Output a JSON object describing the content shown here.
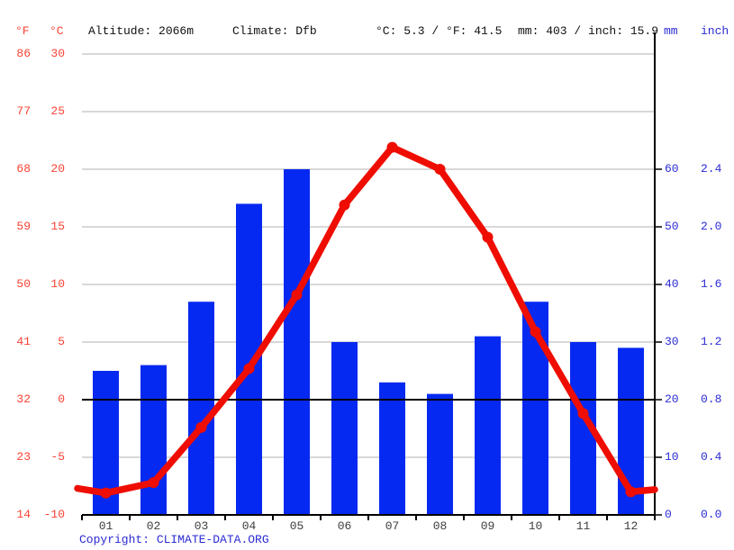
{
  "header": {
    "f_label": "°F",
    "c_label": "°C",
    "altitude": "Altitude: 2066m",
    "climate": "Climate: Dfb",
    "temp_summary": "°C: 5.3 / °F: 41.5",
    "precip_summary": "mm: 403 / inch: 15.9",
    "mm_label": "mm",
    "inch_label": "inch"
  },
  "footer": {
    "copyright": "Copyright: ",
    "site": "CLIMATE-DATA.ORG"
  },
  "colors": {
    "bar_blue": "#0529f0",
    "line_red": "#ee0d00",
    "text_red": "#f94334",
    "text_blue": "#2b2bd4",
    "grid_gray": "#cccccc",
    "axis_black": "#000000",
    "month_text": "#3d3d3d"
  },
  "chart_data": {
    "type": "bar",
    "combo": "bar+line climograph",
    "categories": [
      "01",
      "02",
      "03",
      "04",
      "05",
      "06",
      "07",
      "08",
      "09",
      "10",
      "11",
      "12"
    ],
    "series": [
      {
        "name": "precipitation",
        "type": "bar",
        "unit": "mm",
        "values": [
          25,
          26,
          37,
          54,
          60,
          30,
          23,
          21,
          31,
          37,
          30,
          29
        ]
      },
      {
        "name": "temperature",
        "type": "line",
        "unit": "°C",
        "values": [
          -8.1,
          -7.2,
          -2.4,
          2.7,
          9.1,
          16.9,
          21.9,
          20.0,
          14.1,
          5.9,
          -1.2,
          -8.0
        ]
      }
    ],
    "line_edge_values_c": {
      "left": -7.7,
      "right": -7.8
    },
    "temp_axis": {
      "side": "left",
      "f_ticks": [
        "86",
        "77",
        "68",
        "59",
        "50",
        "41",
        "32",
        "23",
        "14"
      ],
      "c_ticks": [
        "30",
        "25",
        "20",
        "15",
        "10",
        "5",
        "0",
        "-5",
        "-10"
      ],
      "c_tick_values": [
        30,
        25,
        20,
        15,
        10,
        5,
        0,
        -5,
        -10
      ],
      "range_c": [
        -10,
        30
      ]
    },
    "precip_axis": {
      "side": "right",
      "mm_ticks": [
        "60",
        "50",
        "40",
        "30",
        "20",
        "10",
        "0"
      ],
      "inch_ticks": [
        "2.4",
        "2.0",
        "1.6",
        "1.2",
        "0.8",
        "0.4",
        "0.0"
      ],
      "mm_tick_values": [
        60,
        50,
        40,
        30,
        20,
        10,
        0
      ],
      "range_mm": [
        0,
        80
      ]
    },
    "zero_line_c": 0,
    "grid": true,
    "title": "",
    "xlabel": "",
    "ylabel_left": "°F / °C",
    "ylabel_right": "mm / inch"
  }
}
